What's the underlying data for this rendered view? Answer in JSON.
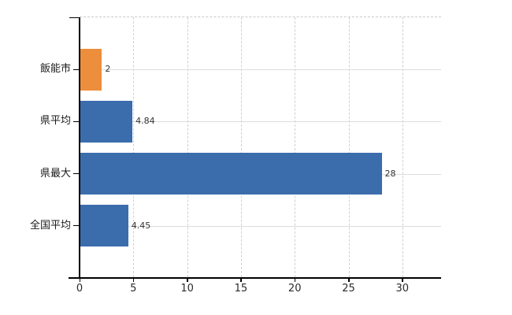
{
  "chart_data": {
    "type": "bar",
    "orientation": "horizontal",
    "categories": [
      "飯能市",
      "県平均",
      "県最大",
      "全国平均"
    ],
    "values": [
      2,
      4.84,
      28,
      4.45
    ],
    "value_labels": [
      "2",
      "4.84",
      "28",
      "4.45"
    ],
    "bar_colors": [
      "#ED8E3C",
      "#3B6DAD",
      "#3B6DAD",
      "#3B6DAD"
    ],
    "highlight_color": "#ED8E3C",
    "default_color": "#3B6DAD",
    "x_ticks": [
      0,
      5,
      10,
      15,
      20,
      25,
      30
    ],
    "x_tick_labels": [
      "0",
      "5",
      "10",
      "15",
      "20",
      "25",
      "30"
    ],
    "xlim": [
      0,
      33.6
    ],
    "grid": true,
    "grid_vertical_style": "dashed",
    "grid_horizontal_style": "solid",
    "top_border_style": "dashed",
    "legend": "none"
  },
  "colors": {
    "background": "#ffffff",
    "axis": "#000000",
    "grid_horizontal": "#dcdcdc",
    "grid_vertical": "#d0d0d0",
    "top_border": "#c9c9c9",
    "label_text": "#1a1a1a",
    "value_text": "#333333"
  }
}
